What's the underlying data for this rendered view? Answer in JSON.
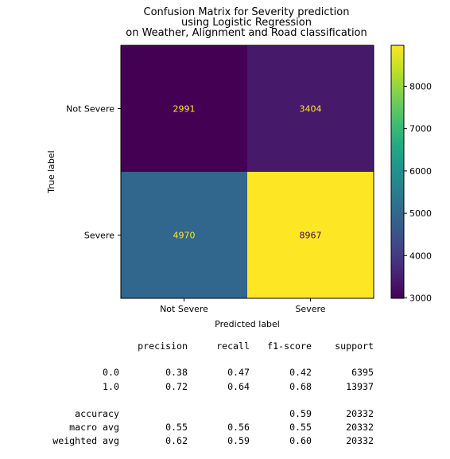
{
  "chart_data": {
    "type": "heatmap",
    "title_lines": [
      "Confusion Matrix for Severity prediction",
      "using Logistic Regression",
      "on Weather, Alignment and Road classification"
    ],
    "xlabel": "Predicted label",
    "ylabel": "True label",
    "x_categories": [
      "Not Severe",
      "Severe"
    ],
    "y_categories": [
      "Not Severe",
      "Severe"
    ],
    "matrix": [
      [
        2991,
        3404
      ],
      [
        4970,
        8967
      ]
    ],
    "colormap": "viridis",
    "colorbar": {
      "range": [
        2991,
        8967
      ],
      "ticks": [
        3000,
        4000,
        5000,
        6000,
        7000,
        8000
      ],
      "tick_labels": [
        "3000",
        "4000",
        "5000",
        "6000",
        "7000",
        "8000"
      ]
    }
  },
  "report": {
    "headers": [
      "precision",
      "recall",
      "f1-score",
      "support"
    ],
    "rows": [
      {
        "label": "0.0",
        "precision": "0.38",
        "recall": "0.47",
        "f1": "0.42",
        "support": "6395"
      },
      {
        "label": "1.0",
        "precision": "0.72",
        "recall": "0.64",
        "f1": "0.68",
        "support": "13937"
      },
      {
        "label": "accuracy",
        "precision": "",
        "recall": "",
        "f1": "0.59",
        "support": "20332"
      },
      {
        "label": "macro avg",
        "precision": "0.55",
        "recall": "0.56",
        "f1": "0.55",
        "support": "20332"
      },
      {
        "label": "weighted avg",
        "precision": "0.62",
        "recall": "0.59",
        "f1": "0.60",
        "support": "20332"
      }
    ]
  }
}
